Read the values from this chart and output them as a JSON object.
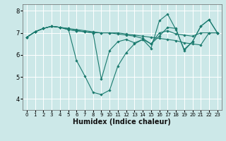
{
  "title": "",
  "xlabel": "Humidex (Indice chaleur)",
  "bg_color": "#cce8e8",
  "grid_color": "#ffffff",
  "line_color": "#1a7a6e",
  "xlim": [
    -0.5,
    23.5
  ],
  "ylim": [
    3.5,
    8.3
  ],
  "yticks": [
    4,
    5,
    6,
    7,
    8
  ],
  "xticks": [
    0,
    1,
    2,
    3,
    4,
    5,
    6,
    7,
    8,
    9,
    10,
    11,
    12,
    13,
    14,
    15,
    16,
    17,
    18,
    19,
    20,
    21,
    22,
    23
  ],
  "curves": [
    [
      6.8,
      7.05,
      7.2,
      7.3,
      7.25,
      7.2,
      5.75,
      5.05,
      4.3,
      4.2,
      4.4,
      5.5,
      6.1,
      6.5,
      6.7,
      6.3,
      7.55,
      7.85,
      7.15,
      6.25,
      6.6,
      7.3,
      7.6,
      7.0
    ],
    [
      6.8,
      7.05,
      7.2,
      7.3,
      7.25,
      7.15,
      7.1,
      7.05,
      7.0,
      4.9,
      6.2,
      6.6,
      6.7,
      6.55,
      6.7,
      6.5,
      6.85,
      7.25,
      7.2,
      6.2,
      6.6,
      7.3,
      7.6,
      7.0
    ],
    [
      6.8,
      7.05,
      7.2,
      7.3,
      7.25,
      7.15,
      7.1,
      7.05,
      7.0,
      7.0,
      7.0,
      6.95,
      6.9,
      6.85,
      6.75,
      6.5,
      7.0,
      7.1,
      6.95,
      6.9,
      6.85,
      7.0,
      7.0,
      7.0
    ],
    [
      6.8,
      7.05,
      7.2,
      7.3,
      7.25,
      7.2,
      7.15,
      7.1,
      7.05,
      7.0,
      7.0,
      7.0,
      6.95,
      6.9,
      6.85,
      6.8,
      6.75,
      6.7,
      6.65,
      6.55,
      6.5,
      6.45,
      7.0,
      7.0
    ]
  ],
  "xlabel_fontsize": 7,
  "xtick_fontsize": 5,
  "ytick_fontsize": 6
}
